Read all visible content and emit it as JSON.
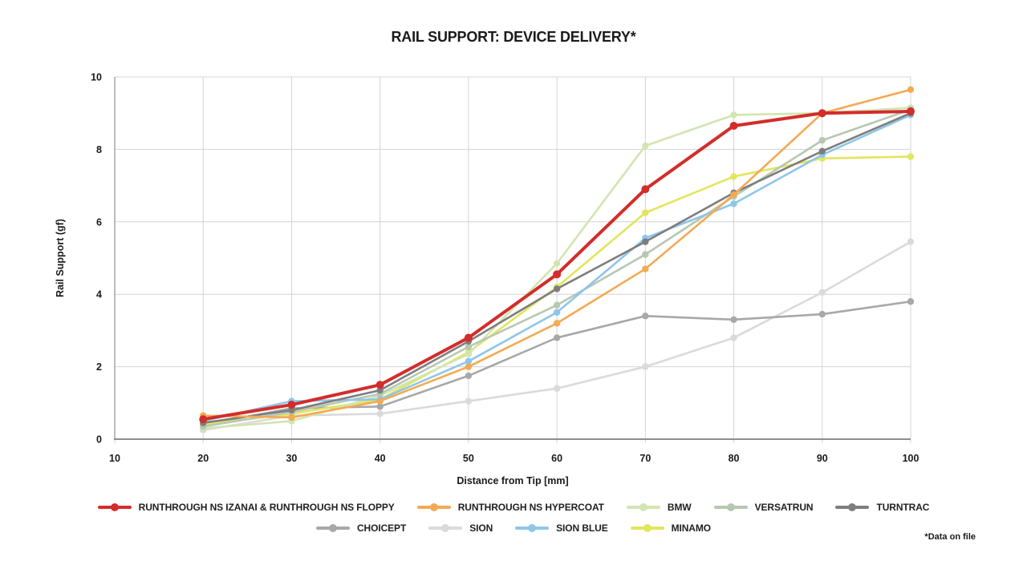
{
  "title": "RAIL SUPPORT: DEVICE DELIVERY*",
  "footnote": "*Data on file",
  "chart_data": {
    "type": "line",
    "title": "RAIL SUPPORT: DEVICE DELIVERY*",
    "xlabel": "Distance from Tip [mm]",
    "ylabel": "Rail Support  (gf)",
    "xlim": [
      10,
      100
    ],
    "ylim": [
      0,
      10
    ],
    "x_ticks": [
      10,
      20,
      30,
      40,
      50,
      60,
      70,
      80,
      90,
      100
    ],
    "y_ticks": [
      0,
      2,
      4,
      6,
      8,
      10
    ],
    "grid": true,
    "legend_position": "bottom",
    "x": [
      20,
      30,
      40,
      50,
      60,
      70,
      80,
      90,
      100
    ],
    "series": [
      {
        "name": "RUNTHROUGH NS IZANAI & RUNTHROUGH NS FLOPPY",
        "color": "#d22d2b",
        "width": 4,
        "values": [
          0.55,
          0.95,
          1.5,
          2.8,
          4.55,
          6.9,
          8.65,
          9.0,
          9.05
        ]
      },
      {
        "name": "RUNTHROUGH NS HYPERCOAT",
        "color": "#f4a952",
        "width": 2.6,
        "values": [
          0.65,
          0.6,
          1.05,
          2.0,
          3.2,
          4.7,
          6.75,
          9.0,
          9.65
        ]
      },
      {
        "name": "BMW",
        "color": "#d2e5b0",
        "width": 2.6,
        "values": [
          0.3,
          0.5,
          1.2,
          2.35,
          4.85,
          8.1,
          8.95,
          9.0,
          9.15
        ]
      },
      {
        "name": "VERSATRUN",
        "color": "#b7c7b2",
        "width": 2.6,
        "values": [
          0.35,
          0.75,
          1.25,
          2.55,
          3.7,
          5.1,
          6.7,
          8.25,
          9.1
        ]
      },
      {
        "name": "TURNTRAC",
        "color": "#7e7e7e",
        "width": 2.6,
        "values": [
          0.45,
          0.8,
          1.35,
          2.7,
          4.15,
          5.45,
          6.8,
          7.95,
          9.0
        ]
      },
      {
        "name": "CHOICEPT",
        "color": "#a8a8a8",
        "width": 2.6,
        "values": [
          0.4,
          0.85,
          0.9,
          1.75,
          2.8,
          3.4,
          3.3,
          3.45,
          3.8
        ]
      },
      {
        "name": "SION",
        "color": "#dadada",
        "width": 2.6,
        "values": [
          0.25,
          0.65,
          0.7,
          1.05,
          1.4,
          2.0,
          2.8,
          4.05,
          5.45
        ]
      },
      {
        "name": "SION BLUE",
        "color": "#8ec6ea",
        "width": 2.6,
        "values": [
          0.5,
          1.05,
          1.1,
          2.15,
          3.5,
          5.55,
          6.5,
          7.85,
          8.95
        ]
      },
      {
        "name": "MINAMO",
        "color": "#e3e55c",
        "width": 2.6,
        "values": [
          0.4,
          0.7,
          1.1,
          2.4,
          4.2,
          6.25,
          7.25,
          7.75,
          7.8
        ]
      }
    ],
    "legend_rows": [
      [
        0,
        1,
        2,
        3,
        4
      ],
      [
        5,
        6,
        7,
        8
      ]
    ],
    "colors": {
      "grid": "#d4d4d4",
      "axis": "#999999",
      "text": "#1a1a1a",
      "background": "#ffffff"
    }
  }
}
